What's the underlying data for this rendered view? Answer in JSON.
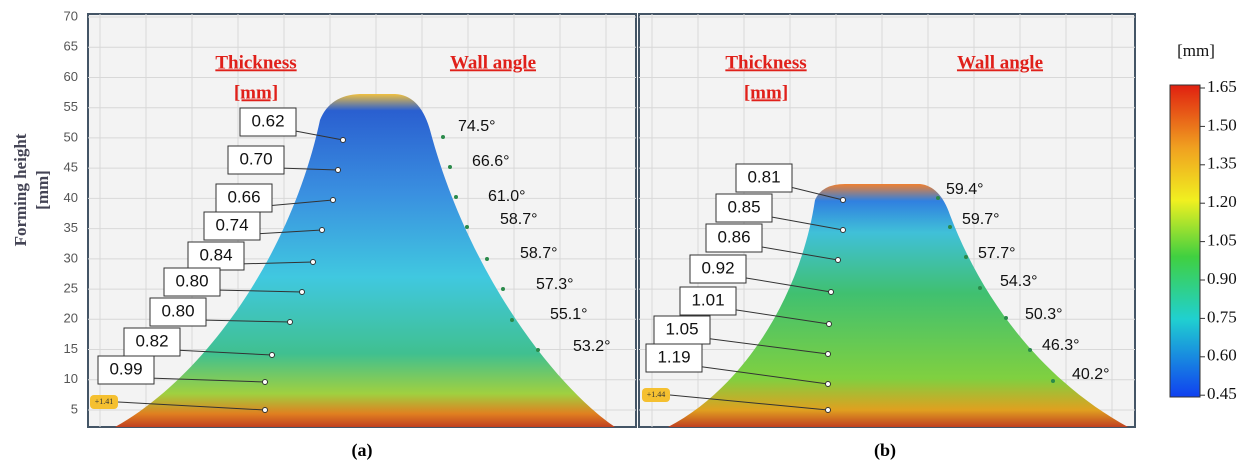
{
  "y_axis": {
    "label": "Forming height",
    "unit": "[mm]",
    "ticks": [
      "70",
      "65",
      "60",
      "55",
      "50",
      "45",
      "40",
      "35",
      "30",
      "25",
      "20",
      "15",
      "10",
      "5"
    ]
  },
  "panels": [
    {
      "caption": "(a)",
      "headers": {
        "thickness": "Thickness",
        "thickness_unit": "[mm]",
        "wall_angle": "Wall angle"
      },
      "thickness_labels": [
        "0.62",
        "0.70",
        "0.66",
        "0.74",
        "0.84",
        "0.80",
        "0.80",
        "0.82",
        "0.99",
        "+1.41"
      ],
      "wall_angles": [
        "74.5°",
        "66.6°",
        "61.0°",
        "58.7°",
        "58.7°",
        "57.3°",
        "55.1°",
        "53.2°"
      ]
    },
    {
      "caption": "(b)",
      "headers": {
        "thickness": "Thickness",
        "thickness_unit": "[mm]",
        "wall_angle": "Wall angle"
      },
      "thickness_labels": [
        "0.81",
        "0.85",
        "0.86",
        "0.92",
        "1.01",
        "1.05",
        "1.19",
        "+1.44"
      ],
      "wall_angles": [
        "59.4°",
        "59.7°",
        "57.7°",
        "54.3°",
        "50.3°",
        "46.3°",
        "40.2°"
      ]
    }
  ],
  "colorbar": {
    "unit": "[mm]",
    "ticks": [
      "1.65",
      "1.50",
      "1.35",
      "1.20",
      "1.05",
      "0.90",
      "0.75",
      "0.60",
      "0.45"
    ]
  }
}
